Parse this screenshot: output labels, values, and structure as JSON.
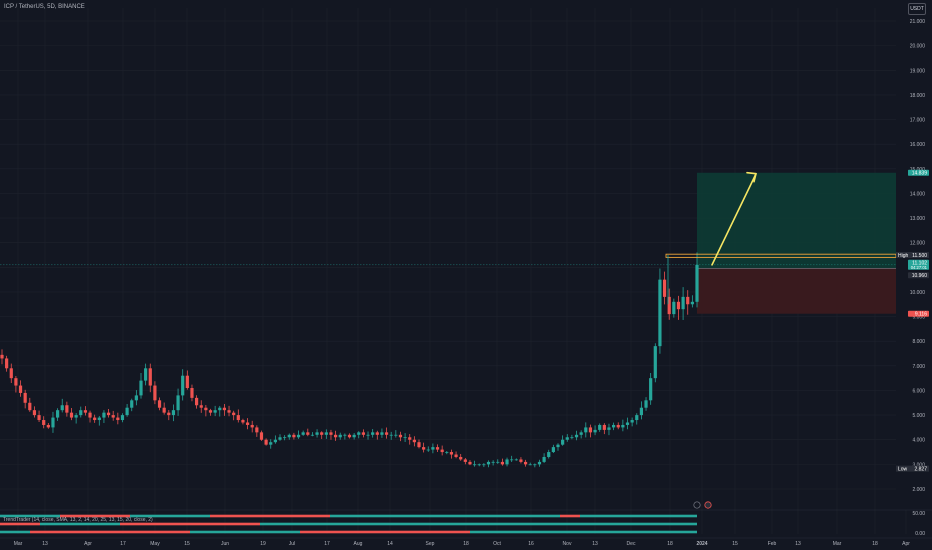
{
  "header": {
    "symbol_title": "ICP / TetherUS, 5D, BINANCE",
    "currency": "USDT"
  },
  "colors": {
    "background": "#131722",
    "up": "#26a69a",
    "down": "#ef5350",
    "grid": "#1e222d",
    "target_zone": "#0d3b34",
    "stop_zone": "#3b1a1f",
    "arrow": "#f5e663",
    "high_line": "#f0a53a",
    "axis_text": "#b2b5be"
  },
  "indicator": {
    "label": "TrendTrader (14, close, SMA, 13, 2, 14, 20, 25, 13, 15, 20, close, 2)",
    "axis_ticks": [
      "50.00",
      "0.00"
    ]
  },
  "badges": {
    "high_label": "High",
    "high_value": "11.500",
    "target_value": "14.839",
    "current_value": "11.102",
    "current_sub": "04:27:01",
    "entry_value": "10.960",
    "stop_value": "9.116",
    "low_label": "Low",
    "low_value": "2.827"
  },
  "chart_data": {
    "type": "candlestick",
    "title": "ICP / TetherUS, 5D, BINANCE",
    "y_ticks": [
      "2.000",
      "3.000",
      "4.000",
      "5.000",
      "6.000",
      "7.000",
      "8.000",
      "9.000",
      "10.000",
      "11.000",
      "12.000",
      "13.000",
      "14.000",
      "15.000",
      "16.000",
      "17.000",
      "18.000",
      "19.000",
      "20.000",
      "21.000"
    ],
    "x_ticks": [
      "Mar",
      "13",
      "Apr",
      "17",
      "May",
      "15",
      "Jun",
      "19",
      "Jul",
      "17",
      "Aug",
      "14",
      "Sep",
      "18",
      "Oct",
      "16",
      "Nov",
      "13",
      "Dec",
      "18",
      "2024",
      "15",
      "Feb",
      "13",
      "Mar",
      "18",
      "Apr"
    ],
    "ylim": [
      1.0,
      21.5
    ],
    "grid": true,
    "closes": [
      7.3,
      6.9,
      6.5,
      6.2,
      5.9,
      5.5,
      5.2,
      5.0,
      4.8,
      4.6,
      4.5,
      4.9,
      5.2,
      5.4,
      5.1,
      4.9,
      5.0,
      5.2,
      5.1,
      4.9,
      4.8,
      4.9,
      5.1,
      5.0,
      4.9,
      4.8,
      5.0,
      5.3,
      5.6,
      5.8,
      6.4,
      6.9,
      6.2,
      5.6,
      5.3,
      5.1,
      5.0,
      5.2,
      5.8,
      6.6,
      6.1,
      5.7,
      5.4,
      5.3,
      5.2,
      5.1,
      5.2,
      5.3,
      5.2,
      5.1,
      5.0,
      4.8,
      4.7,
      4.6,
      4.5,
      4.3,
      4.0,
      3.8,
      3.9,
      4.0,
      4.1,
      4.1,
      4.2,
      4.1,
      4.2,
      4.3,
      4.2,
      4.2,
      4.3,
      4.2,
      4.3,
      4.2,
      4.1,
      4.2,
      4.2,
      4.1,
      4.2,
      4.3,
      4.2,
      4.2,
      4.3,
      4.2,
      4.3,
      4.2,
      4.2,
      4.2,
      4.1,
      4.1,
      4.0,
      3.9,
      3.7,
      3.6,
      3.6,
      3.7,
      3.6,
      3.5,
      3.5,
      3.4,
      3.3,
      3.2,
      3.1,
      3.0,
      3.0,
      3.0,
      3.0,
      3.1,
      3.1,
      3.1,
      3.0,
      3.2,
      3.2,
      3.2,
      3.1,
      3.0,
      3.0,
      3.0,
      3.1,
      3.3,
      3.5,
      3.7,
      3.8,
      4.0,
      4.1,
      4.1,
      4.2,
      4.3,
      4.5,
      4.3,
      4.4,
      4.6,
      4.4,
      4.5,
      4.6,
      4.5,
      4.6,
      4.7,
      4.8,
      5.0,
      5.3,
      5.6,
      6.5,
      7.8,
      10.5,
      9.8,
      9.1,
      9.6,
      9.3,
      9.8,
      9.5,
      9.6,
      11.1
    ],
    "target_box": {
      "top": 14.839,
      "entry": 10.96,
      "stop": 9.116
    },
    "high": 11.5,
    "current": 11.102,
    "low": 2.827
  }
}
